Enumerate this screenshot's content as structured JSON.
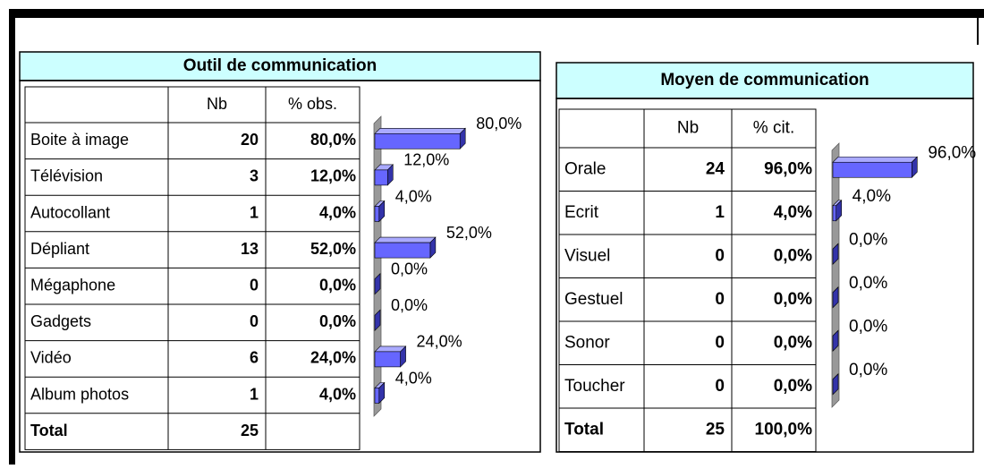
{
  "tables": [
    {
      "title": "Outil de communication",
      "headers": [
        "Nb",
        "% obs."
      ],
      "rows": [
        {
          "label": "Boite à image",
          "nb": 20
        },
        {
          "label": "Télévision",
          "nb": 3
        },
        {
          "label": "Autocollant",
          "nb": 1
        },
        {
          "label": "Dépliant",
          "nb": 13
        },
        {
          "label": "Mégaphone",
          "nb": 0
        },
        {
          "label": "Gadgets",
          "nb": 0
        },
        {
          "label": "Vidéo",
          "nb": 6
        },
        {
          "label": "Album photos",
          "nb": 1
        }
      ],
      "total": {
        "label": "Total",
        "nb": 25
      },
      "bars": {
        "values": [
          80,
          12,
          4,
          52,
          0,
          0,
          24,
          4
        ],
        "value_labels": [
          "80,0%",
          "12,0%",
          "4,0%",
          "52,0%",
          "0,0%",
          "0,0%",
          "24,0%",
          "4,0%"
        ]
      }
    },
    {
      "title": "Moyen de communication",
      "headers": [
        "Nb",
        "% cit."
      ],
      "rows": [
        {
          "label": "Orale",
          "nb": 24
        },
        {
          "label": "Ecrit",
          "nb": 1
        },
        {
          "label": "Visuel",
          "nb": 0
        },
        {
          "label": "Gestuel",
          "nb": 0
        },
        {
          "label": "Sonor",
          "nb": 0
        },
        {
          "label": "Toucher",
          "nb": 0
        }
      ],
      "total": {
        "label": "Total",
        "nb": 25,
        "pct": "100,0%"
      },
      "bars": {
        "values": [
          96,
          4,
          0,
          0,
          0,
          0
        ],
        "value_labels": [
          "96,0%",
          "4,0%",
          "0,0%",
          "0,0%",
          "0,0%",
          "0,0%"
        ]
      }
    }
  ]
}
